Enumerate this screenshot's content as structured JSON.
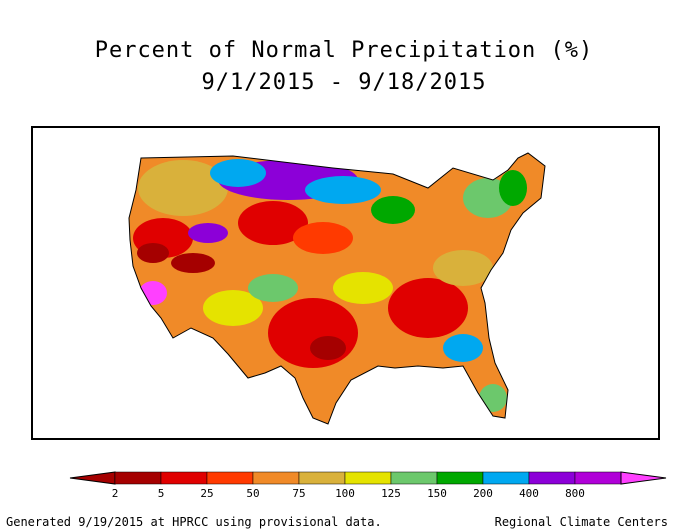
{
  "title": "Percent of Normal Precipitation (%)",
  "date_range": "9/1/2015 - 9/18/2015",
  "legend": {
    "colors": [
      "#a50000",
      "#e00000",
      "#ff3a00",
      "#f08a28",
      "#d9b13b",
      "#e5e300",
      "#6cc86c",
      "#00a800",
      "#00a8f0",
      "#8c00d8",
      "#b000d8"
    ],
    "min_arrow_color": "#a50000",
    "max_arrow_color": "#ff40ff",
    "labels": [
      "2",
      "5",
      "25",
      "50",
      "75",
      "100",
      "125",
      "150",
      "200",
      "400",
      "800"
    ]
  },
  "footer_left": "Generated 9/19/2015 at HPRCC using provisional data.",
  "footer_right": "Regional Climate Centers"
}
